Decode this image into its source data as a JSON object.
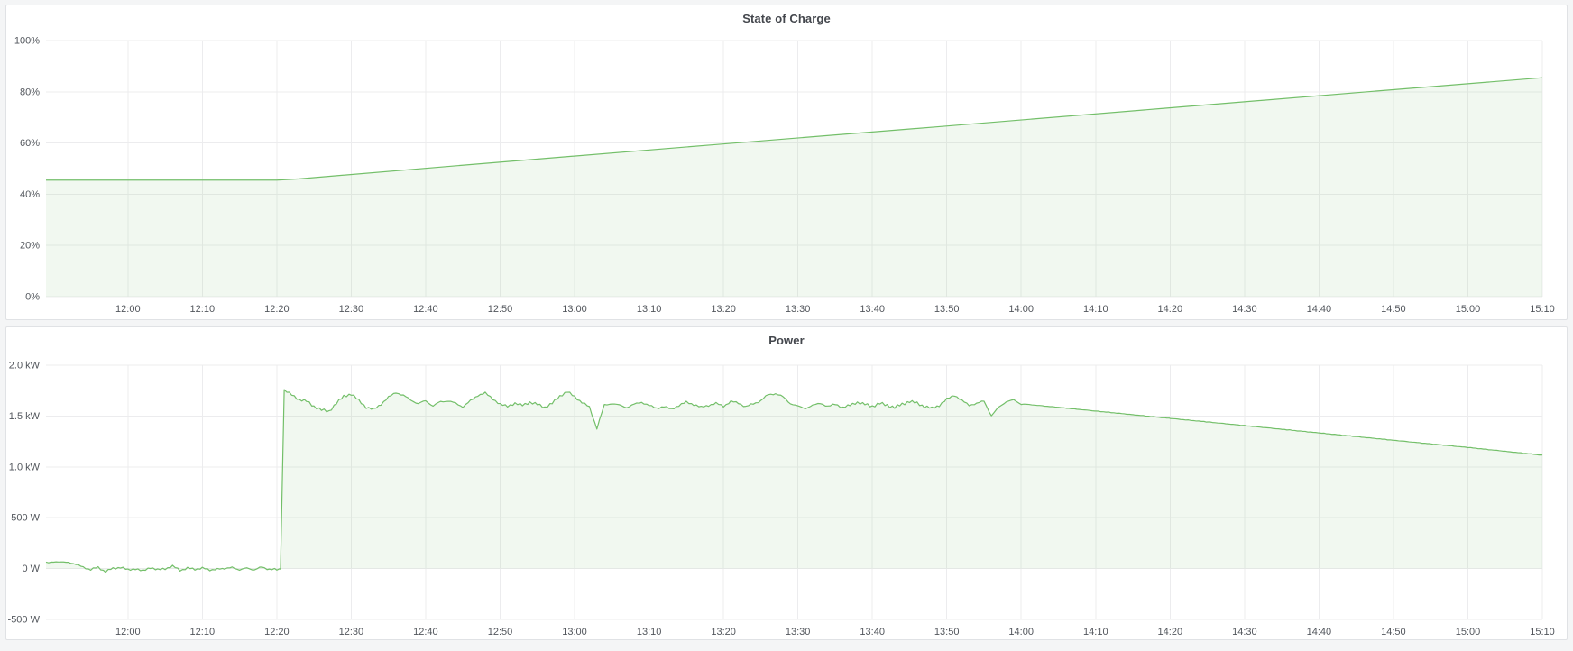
{
  "page": {
    "background": "#f4f5f6"
  },
  "colors": {
    "line": "#73bf69",
    "fill": "rgba(115,191,105,0.10)",
    "grid": "#ececee",
    "axis_text": "#52565c",
    "title_text": "#44474d",
    "panel_bg": "#ffffff",
    "panel_border": "#e0e2e5",
    "page_bg": "#f4f5f6"
  },
  "panels": [
    {
      "title": "State of Charge"
    },
    {
      "title": "Power"
    }
  ],
  "chart_data": [
    {
      "type": "area",
      "title": "State of Charge",
      "xlabel": "",
      "ylabel": "",
      "grid": true,
      "legend": "none",
      "x_domain_minutes": [
        0,
        201
      ],
      "x_domain_time": [
        "11:49",
        "15:10"
      ],
      "x_ticks": [
        11,
        21,
        31,
        41,
        51,
        61,
        71,
        81,
        91,
        101,
        111,
        121,
        131,
        141,
        151,
        161,
        171,
        181,
        191,
        201
      ],
      "x_tick_labels": [
        "12:00",
        "12:10",
        "12:20",
        "12:30",
        "12:40",
        "12:50",
        "13:00",
        "13:10",
        "13:20",
        "13:30",
        "13:40",
        "13:50",
        "14:00",
        "14:10",
        "14:20",
        "14:30",
        "14:40",
        "14:50",
        "15:00",
        "15:10"
      ],
      "y_domain": [
        0,
        100
      ],
      "y_ticks": [
        0,
        20,
        40,
        60,
        80,
        100
      ],
      "y_tick_labels": [
        "0%",
        "20%",
        "40%",
        "60%",
        "80%",
        "100%"
      ],
      "baseline": 0,
      "series": [
        {
          "name": "State of Charge",
          "unit": "%",
          "color": "#73bf69",
          "points": [
            [
              0,
              45.5
            ],
            [
              31,
              45.5
            ],
            [
              34,
              46.0
            ],
            [
              60,
              52.3
            ],
            [
              90,
              59.4
            ],
            [
              120,
              66.4
            ],
            [
              150,
              73.5
            ],
            [
              180,
              80.6
            ],
            [
              201,
              85.5
            ]
          ],
          "noise": []
        }
      ]
    },
    {
      "type": "area",
      "title": "Power",
      "xlabel": "",
      "ylabel": "",
      "grid": true,
      "legend": "none",
      "x_domain_minutes": [
        0,
        201
      ],
      "x_domain_time": [
        "11:49",
        "15:10"
      ],
      "x_ticks": [
        11,
        21,
        31,
        41,
        51,
        61,
        71,
        81,
        91,
        101,
        111,
        121,
        131,
        141,
        151,
        161,
        171,
        181,
        191,
        201
      ],
      "x_tick_labels": [
        "12:00",
        "12:10",
        "12:20",
        "12:30",
        "12:40",
        "12:50",
        "13:00",
        "13:10",
        "13:20",
        "13:30",
        "13:40",
        "13:50",
        "14:00",
        "14:10",
        "14:20",
        "14:30",
        "14:40",
        "14:50",
        "15:00",
        "15:10"
      ],
      "y_domain": [
        -500,
        2000
      ],
      "y_ticks": [
        -500,
        0,
        500,
        1000,
        1500,
        2000
      ],
      "y_tick_labels": [
        "-500 W",
        "0 W",
        "500 W",
        "1.0 kW",
        "1.5 kW",
        "2.0 kW"
      ],
      "baseline": 0,
      "series": [
        {
          "name": "Power",
          "unit": "W",
          "color": "#73bf69",
          "points": [
            [
              0,
              55
            ],
            [
              1,
              70
            ],
            [
              2,
              60
            ],
            [
              3,
              65
            ],
            [
              4,
              40
            ],
            [
              5,
              15
            ],
            [
              6,
              -10
            ],
            [
              7,
              10
            ],
            [
              8,
              -25
            ],
            [
              9,
              -5
            ],
            [
              10,
              20
            ],
            [
              11,
              -20
            ],
            [
              12,
              5
            ],
            [
              13,
              -30
            ],
            [
              14,
              15
            ],
            [
              15,
              -15
            ],
            [
              16,
              0
            ],
            [
              17,
              25
            ],
            [
              18,
              -20
            ],
            [
              19,
              10
            ],
            [
              20,
              -15
            ],
            [
              21,
              15
            ],
            [
              22,
              -25
            ],
            [
              23,
              5
            ],
            [
              24,
              -10
            ],
            [
              25,
              20
            ],
            [
              26,
              -20
            ],
            [
              27,
              10
            ],
            [
              28,
              -15
            ],
            [
              29,
              15
            ],
            [
              30,
              -5
            ],
            [
              31,
              -15
            ],
            [
              31.5,
              -5
            ],
            [
              32,
              1760
            ],
            [
              33,
              1705
            ],
            [
              34,
              1665
            ],
            [
              35,
              1645
            ],
            [
              36,
              1595
            ],
            [
              37,
              1560
            ],
            [
              38,
              1545
            ],
            [
              39,
              1625
            ],
            [
              40,
              1695
            ],
            [
              41,
              1715
            ],
            [
              42,
              1655
            ],
            [
              43,
              1585
            ],
            [
              44,
              1565
            ],
            [
              45,
              1615
            ],
            [
              46,
              1685
            ],
            [
              47,
              1730
            ],
            [
              48,
              1705
            ],
            [
              49,
              1655
            ],
            [
              50,
              1625
            ],
            [
              51,
              1645
            ],
            [
              52,
              1605
            ],
            [
              53,
              1635
            ],
            [
              54,
              1655
            ],
            [
              55,
              1620
            ],
            [
              56,
              1595
            ],
            [
              57,
              1645
            ],
            [
              58,
              1705
            ],
            [
              59,
              1725
            ],
            [
              60,
              1670
            ],
            [
              61,
              1615
            ],
            [
              62,
              1595
            ],
            [
              63,
              1625
            ],
            [
              64,
              1605
            ],
            [
              65,
              1635
            ],
            [
              66,
              1615
            ],
            [
              67,
              1585
            ],
            [
              68,
              1625
            ],
            [
              69,
              1695
            ],
            [
              70,
              1740
            ],
            [
              71,
              1690
            ],
            [
              72,
              1635
            ],
            [
              73,
              1585
            ],
            [
              74,
              1380
            ],
            [
              75,
              1605
            ],
            [
              76,
              1625
            ],
            [
              77,
              1605
            ],
            [
              78,
              1585
            ],
            [
              79,
              1615
            ],
            [
              80,
              1635
            ],
            [
              81,
              1605
            ],
            [
              82,
              1575
            ],
            [
              83,
              1595
            ],
            [
              84,
              1565
            ],
            [
              85,
              1605
            ],
            [
              86,
              1635
            ],
            [
              87,
              1615
            ],
            [
              88,
              1585
            ],
            [
              89,
              1605
            ],
            [
              90,
              1625
            ],
            [
              91,
              1595
            ],
            [
              92,
              1645
            ],
            [
              93,
              1625
            ],
            [
              94,
              1595
            ],
            [
              95,
              1615
            ],
            [
              96,
              1655
            ],
            [
              97,
              1705
            ],
            [
              98,
              1725
            ],
            [
              99,
              1685
            ],
            [
              100,
              1625
            ],
            [
              101,
              1595
            ],
            [
              102,
              1575
            ],
            [
              103,
              1605
            ],
            [
              104,
              1625
            ],
            [
              105,
              1595
            ],
            [
              106,
              1615
            ],
            [
              107,
              1585
            ],
            [
              108,
              1605
            ],
            [
              109,
              1635
            ],
            [
              110,
              1615
            ],
            [
              111,
              1595
            ],
            [
              112,
              1625
            ],
            [
              113,
              1605
            ],
            [
              114,
              1585
            ],
            [
              115,
              1615
            ],
            [
              116,
              1645
            ],
            [
              117,
              1625
            ],
            [
              118,
              1595
            ],
            [
              119,
              1575
            ],
            [
              120,
              1605
            ],
            [
              121,
              1665
            ],
            [
              122,
              1705
            ],
            [
              123,
              1655
            ],
            [
              124,
              1605
            ],
            [
              125,
              1625
            ],
            [
              126,
              1645
            ],
            [
              127,
              1505
            ],
            [
              128,
              1585
            ],
            [
              129,
              1645
            ],
            [
              130,
              1655
            ],
            [
              131,
              1620
            ],
            [
              136,
              1585
            ],
            [
              141,
              1549
            ],
            [
              146,
              1513
            ],
            [
              151,
              1477
            ],
            [
              156,
              1442
            ],
            [
              161,
              1406
            ],
            [
              166,
              1370
            ],
            [
              171,
              1334
            ],
            [
              176,
              1298
            ],
            [
              181,
              1262
            ],
            [
              186,
              1226
            ],
            [
              191,
              1191
            ],
            [
              196,
              1153
            ],
            [
              201,
              1115
            ]
          ],
          "noise": [
            {
              "from": 0,
              "to": 31.4,
              "amplitude": 20
            },
            {
              "from": 32,
              "to": 126.5,
              "amplitude": 16
            },
            {
              "from": 126.5,
              "to": 131,
              "amplitude": 12
            },
            {
              "from": 131,
              "to": 201,
              "amplitude": 3
            }
          ]
        }
      ]
    }
  ]
}
